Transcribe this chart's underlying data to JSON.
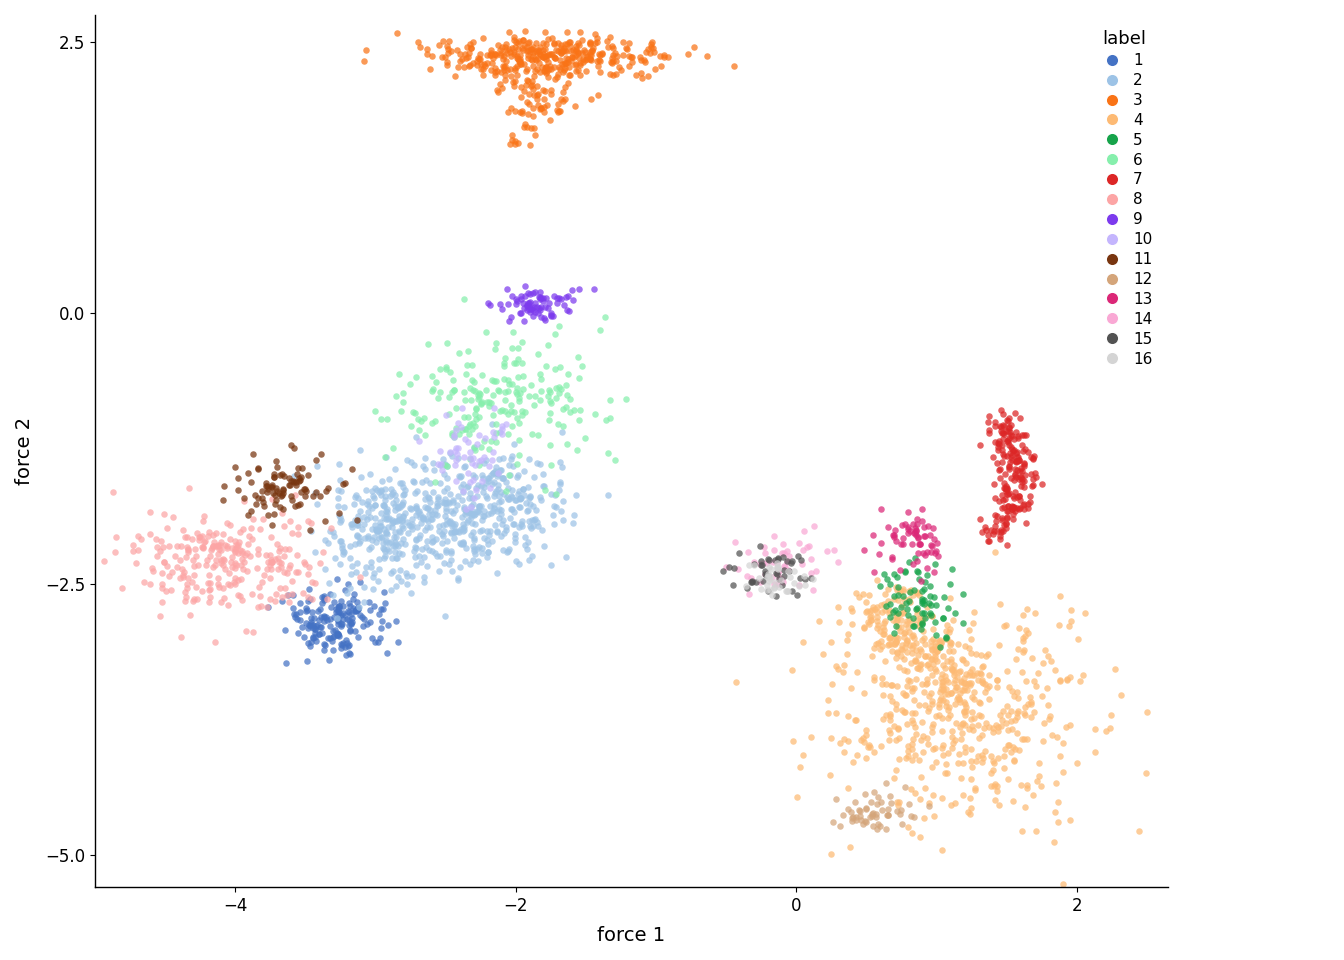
{
  "xlabel": "force 1",
  "ylabel": "force 2",
  "xlim": [
    -5.0,
    2.65
  ],
  "ylim": [
    -5.3,
    2.75
  ],
  "xticks": [
    -4,
    -2,
    0,
    2
  ],
  "yticks": [
    -5.0,
    -2.5,
    0.0,
    2.5
  ],
  "legend_title": "label",
  "cluster_colors": {
    "1": "#4472C4",
    "2": "#9DC3E6",
    "3": "#F97316",
    "4": "#FDBA74",
    "5": "#16A34A",
    "6": "#86EFAC",
    "7": "#DC2626",
    "8": "#FCA5A5",
    "9": "#7C3AED",
    "10": "#C4B5FD",
    "11": "#78350F",
    "12": "#D4A57A",
    "13": "#DB2777",
    "14": "#F9A8D4",
    "15": "#525252",
    "16": "#D4D4D4"
  },
  "alpha": 0.72,
  "point_size": 22
}
